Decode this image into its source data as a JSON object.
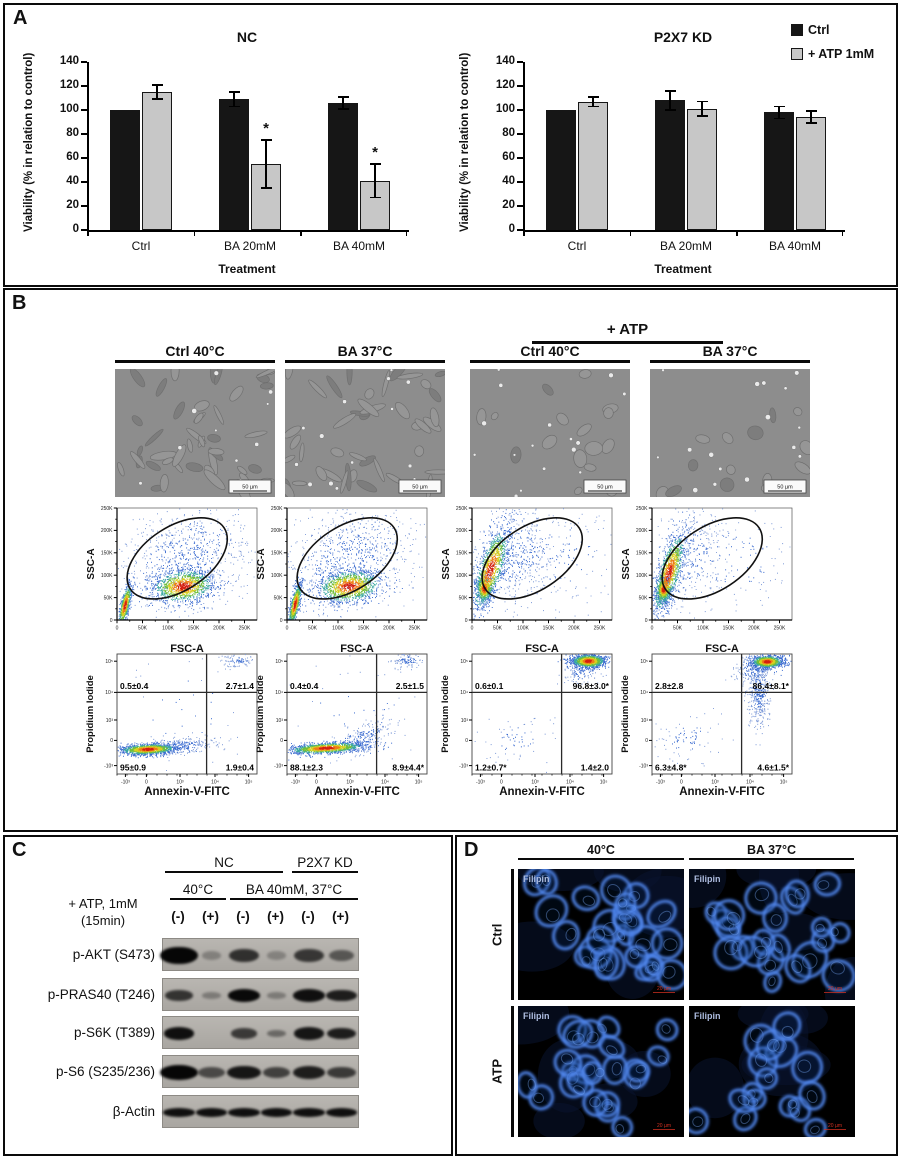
{
  "figure_labels": {
    "a": "A",
    "b": "B",
    "c": "C",
    "d": "D"
  },
  "chart_data": [
    {
      "type": "bar",
      "title": "NC",
      "categories": [
        "Ctrl",
        "BA 20mM",
        "BA 40mM"
      ],
      "series": [
        {
          "name": "Ctrl",
          "values": [
            100,
            109,
            106
          ],
          "errors": [
            0,
            6,
            5
          ]
        },
        {
          "name": "+ ATP 1mM",
          "values": [
            115,
            55,
            41
          ],
          "errors": [
            6,
            20,
            14
          ]
        }
      ],
      "sig_on_atp": [
        false,
        true,
        true
      ],
      "xlabel": "Treatment",
      "ylabel": "Viability (% in relation to control)",
      "ylim": [
        0,
        140
      ],
      "ytick_step": 20
    },
    {
      "type": "bar",
      "title": "P2X7 KD",
      "categories": [
        "Ctrl",
        "BA 20mM",
        "BA 40mM"
      ],
      "series": [
        {
          "name": "Ctrl",
          "values": [
            100,
            108,
            98
          ],
          "errors": [
            0,
            8,
            5
          ]
        },
        {
          "name": "+ ATP 1mM",
          "values": [
            107,
            101,
            94
          ],
          "errors": [
            4,
            6,
            5
          ]
        }
      ],
      "sig_on_atp": [
        false,
        false,
        false
      ],
      "xlabel": "Treatment",
      "ylabel": "Viability (% in relation to control)",
      "ylim": [
        0,
        140
      ],
      "ytick_step": 20
    }
  ],
  "panel_a": {
    "legend": [
      {
        "label": "Ctrl",
        "color": "#161616",
        "border": "#161616"
      },
      {
        "label": "+ ATP 1mM",
        "color": "#c7c7c7",
        "border": "#161616"
      }
    ]
  },
  "panel_b": {
    "atp_group_header": "+ ATP",
    "column_headers": [
      "Ctrl 40°C",
      "BA 37°C",
      "Ctrl 40°C",
      "BA 37°C"
    ],
    "micrograph_scale_label": "50 µm",
    "flow_axis": {
      "xlabel": "FSC-A",
      "ylabel": "SSC-A",
      "xticks": [
        "0",
        "50K",
        "100K",
        "150K",
        "200K",
        "250K"
      ],
      "yticks": [
        "0",
        "50K",
        "100K",
        "150K",
        "200K",
        "250K"
      ]
    },
    "annexin_axis": {
      "xlabel": "Annexin-V-FITC",
      "ylabel": "Propidium Iodide",
      "xticks": [
        "-10³",
        "0",
        "10³",
        "10⁴",
        "10⁵"
      ],
      "yticks": [
        "10⁵",
        "10⁴",
        "10³",
        "0",
        "-10³"
      ]
    },
    "annexin_quadrants": [
      {
        "tl": "0.5±0.4",
        "tr": "2.7±1.4",
        "bl": "95±0.9",
        "br": "1.9±0.4"
      },
      {
        "tl": "0.4±0.4",
        "tr": "2.5±1.5",
        "bl": "88.1±2.3",
        "br": "8.9±4.4*"
      },
      {
        "tl": "0.6±0.1",
        "tr": "96.8±3.0*",
        "bl": "1.2±0.7*",
        "br": "1.4±2.0"
      },
      {
        "tl": "2.8±2.8",
        "tr": "86.4±8.1*",
        "bl": "6.3±4.8*",
        "br": "4.6±1.5*"
      }
    ]
  },
  "panel_c": {
    "treatment_label_line1": "+ ATP, 1mM",
    "treatment_label_line2": "(15min)",
    "group_headers": [
      "NC",
      "P2X7 KD"
    ],
    "condition_headers": [
      "40°C",
      "BA 40mM, 37°C"
    ],
    "lane_labels": [
      "(-)",
      "(+)",
      "(-)",
      "(+)",
      "(-)",
      "(+)"
    ],
    "blots": [
      {
        "label": "p-AKT (S473)",
        "bands": [
          1.0,
          0.06,
          0.62,
          0.05,
          0.58,
          0.35
        ]
      },
      {
        "label": "p-PRAS40 (T246)",
        "bands": [
          0.6,
          0.1,
          0.9,
          0.1,
          0.85,
          0.75
        ]
      },
      {
        "label": "p-S6K (T389)",
        "bands": [
          0.85,
          0.02,
          0.55,
          0.22,
          0.8,
          0.75
        ]
      },
      {
        "label": "p-S6 (S235/236)",
        "bands": [
          1.0,
          0.45,
          0.8,
          0.5,
          0.75,
          0.55
        ]
      },
      {
        "label": "β-Actin",
        "bands": [
          0.85,
          0.85,
          0.85,
          0.85,
          0.85,
          0.85
        ]
      }
    ]
  },
  "panel_d": {
    "column_headers": [
      "40°C",
      "BA 37°C"
    ],
    "row_labels": [
      "Ctrl",
      "ATP"
    ],
    "stain_label": "Filipin",
    "scale_label": "20 µm"
  }
}
